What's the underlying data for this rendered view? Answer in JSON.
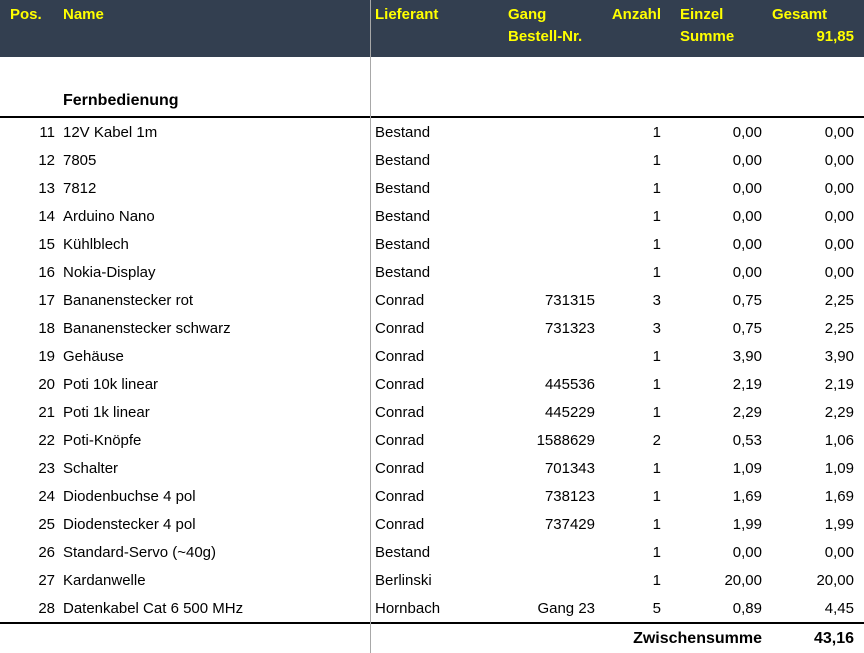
{
  "header": {
    "bg_color": "#333F50",
    "text_color": "#FFFF00",
    "row1": {
      "pos": "Pos.",
      "name": "Name",
      "lieferant": "Lieferant",
      "gang": "Gang",
      "anzahl": "Anzahl",
      "einzel": "Einzel",
      "gesamt": "Gesamt"
    },
    "row2": {
      "bestellnr": "Bestell-Nr.",
      "summe": "Summe",
      "total": "91,85"
    }
  },
  "section": {
    "title": "Fernbedienung"
  },
  "rows": [
    {
      "pos": "11",
      "name": "12V Kabel 1m",
      "lieferant": "Bestand",
      "bestellnr": "",
      "anzahl": "1",
      "einzel": "0,00",
      "gesamt": "0,00"
    },
    {
      "pos": "12",
      "name": "7805",
      "lieferant": "Bestand",
      "bestellnr": "",
      "anzahl": "1",
      "einzel": "0,00",
      "gesamt": "0,00"
    },
    {
      "pos": "13",
      "name": "7812",
      "lieferant": "Bestand",
      "bestellnr": "",
      "anzahl": "1",
      "einzel": "0,00",
      "gesamt": "0,00"
    },
    {
      "pos": "14",
      "name": "Arduino Nano",
      "lieferant": "Bestand",
      "bestellnr": "",
      "anzahl": "1",
      "einzel": "0,00",
      "gesamt": "0,00"
    },
    {
      "pos": "15",
      "name": "Kühlblech",
      "lieferant": "Bestand",
      "bestellnr": "",
      "anzahl": "1",
      "einzel": "0,00",
      "gesamt": "0,00"
    },
    {
      "pos": "16",
      "name": "Nokia-Display",
      "lieferant": "Bestand",
      "bestellnr": "",
      "anzahl": "1",
      "einzel": "0,00",
      "gesamt": "0,00"
    },
    {
      "pos": "17",
      "name": "Bananenstecker rot",
      "lieferant": "Conrad",
      "bestellnr": "731315",
      "anzahl": "3",
      "einzel": "0,75",
      "gesamt": "2,25"
    },
    {
      "pos": "18",
      "name": "Bananenstecker schwarz",
      "lieferant": "Conrad",
      "bestellnr": "731323",
      "anzahl": "3",
      "einzel": "0,75",
      "gesamt": "2,25"
    },
    {
      "pos": "19",
      "name": "Gehäuse",
      "lieferant": "Conrad",
      "bestellnr": "",
      "anzahl": "1",
      "einzel": "3,90",
      "gesamt": "3,90"
    },
    {
      "pos": "20",
      "name": "Poti 10k linear",
      "lieferant": "Conrad",
      "bestellnr": "445536",
      "anzahl": "1",
      "einzel": "2,19",
      "gesamt": "2,19"
    },
    {
      "pos": "21",
      "name": "Poti 1k linear",
      "lieferant": "Conrad",
      "bestellnr": "445229",
      "anzahl": "1",
      "einzel": "2,29",
      "gesamt": "2,29"
    },
    {
      "pos": "22",
      "name": "Poti-Knöpfe",
      "lieferant": "Conrad",
      "bestellnr": "1588629",
      "anzahl": "2",
      "einzel": "0,53",
      "gesamt": "1,06"
    },
    {
      "pos": "23",
      "name": "Schalter",
      "lieferant": "Conrad",
      "bestellnr": "701343",
      "anzahl": "1",
      "einzel": "1,09",
      "gesamt": "1,09"
    },
    {
      "pos": "24",
      "name": "Diodenbuchse 4 pol",
      "lieferant": "Conrad",
      "bestellnr": "738123",
      "anzahl": "1",
      "einzel": "1,69",
      "gesamt": "1,69"
    },
    {
      "pos": "25",
      "name": "Diodenstecker 4 pol",
      "lieferant": "Conrad",
      "bestellnr": "737429",
      "anzahl": "1",
      "einzel": "1,99",
      "gesamt": "1,99"
    },
    {
      "pos": "26",
      "name": "Standard-Servo (~40g)",
      "lieferant": "Bestand",
      "bestellnr": "",
      "anzahl": "1",
      "einzel": "0,00",
      "gesamt": "0,00"
    },
    {
      "pos": "27",
      "name": "Kardanwelle",
      "lieferant": "Berlinski",
      "bestellnr": "",
      "anzahl": "1",
      "einzel": "20,00",
      "gesamt": "20,00"
    },
    {
      "pos": "28",
      "name": "Datenkabel Cat 6 500 MHz",
      "lieferant": "Hornbach",
      "bestellnr": "Gang 23",
      "anzahl": "5",
      "einzel": "0,89",
      "gesamt": "4,45"
    }
  ],
  "footer": {
    "label": "Zwischensumme",
    "value": "43,16"
  }
}
